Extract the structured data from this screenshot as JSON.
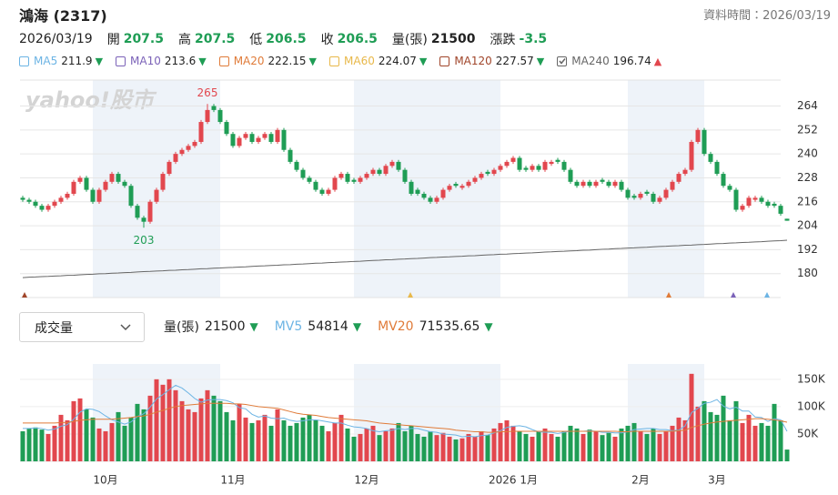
{
  "header": {
    "title": "鴻海 (2317)",
    "data_time": "資料時間：2026/03/19",
    "quote": {
      "date": "2026/03/19",
      "items": [
        {
          "label": "開",
          "value": 207.5,
          "color": "#1f9d55"
        },
        {
          "label": "高",
          "value": 207.5,
          "color": "#1f9d55"
        },
        {
          "label": "低",
          "value": 206.5,
          "color": "#1f9d55"
        },
        {
          "label": "收",
          "value": 206.5,
          "color": "#1f9d55"
        },
        {
          "label": "量(張)",
          "value": 21500,
          "color": "#222222"
        },
        {
          "label": "漲跌",
          "value": -3.5,
          "color": "#1f9d55"
        }
      ]
    }
  },
  "chart_data": [
    {
      "type": "candlestick",
      "watermark": "yahoo!股市",
      "high_label": "265",
      "low_label": "203",
      "up_color": "#e2474e",
      "down_color": "#1f9d55",
      "ylim": [
        168,
        277
      ],
      "yticks": [
        264,
        252,
        240,
        228,
        216,
        204,
        192,
        180
      ],
      "grid": true,
      "ma_legend": [
        {
          "name": "MA5",
          "value": 211.9,
          "trend": "▼",
          "color": "#6cb4e4",
          "checked": false
        },
        {
          "name": "MA10",
          "value": 213.6,
          "trend": "▼",
          "color": "#7b62b8",
          "checked": false
        },
        {
          "name": "MA20",
          "value": 222.15,
          "trend": "▼",
          "color": "#e07b39",
          "checked": false
        },
        {
          "name": "MA60",
          "value": 224.07,
          "trend": "▼",
          "color": "#e8b84a",
          "checked": false
        },
        {
          "name": "MA120",
          "value": 227.57,
          "trend": "▼",
          "color": "#a0452a",
          "checked": false
        },
        {
          "name": "MA240",
          "value": 196.74,
          "trend": "▲",
          "color": "#666666",
          "checked": true,
          "values": [
            178.0,
            178.2,
            178.3,
            178.5,
            178.6,
            178.8,
            178.9,
            179.1,
            179.2,
            179.4,
            179.6,
            179.7,
            179.9,
            180.0,
            180.2,
            180.3,
            180.5,
            180.6,
            180.8,
            181.0,
            181.1,
            181.3,
            181.4,
            181.6,
            181.7,
            181.9,
            182.0,
            182.2,
            182.4,
            182.5,
            182.7,
            182.8,
            183.0,
            183.1,
            183.3,
            183.4,
            183.6,
            183.8,
            183.9,
            184.1,
            184.2,
            184.4,
            184.5,
            184.7,
            184.8,
            185.0,
            185.2,
            185.3,
            185.5,
            185.6,
            185.8,
            185.9,
            186.1,
            186.2,
            186.4,
            186.6,
            186.7,
            186.9,
            187.0,
            187.2,
            187.3,
            187.5,
            187.6,
            187.8,
            188.0,
            188.1,
            188.3,
            188.4,
            188.6,
            188.7,
            188.9,
            189.0,
            189.2,
            189.4,
            189.5,
            189.7,
            189.8,
            190.0,
            190.1,
            190.3,
            190.4,
            190.6,
            190.8,
            190.9,
            191.1,
            191.2,
            191.4,
            191.5,
            191.7,
            191.8,
            192.0,
            192.2,
            192.3,
            192.5,
            192.6,
            192.8,
            192.9,
            193.1,
            193.2,
            193.4,
            193.6,
            193.7,
            193.9,
            194.0,
            194.2,
            194.3,
            194.5,
            194.6,
            194.8,
            195.0,
            195.1,
            195.3,
            195.4,
            195.6,
            195.7,
            195.9,
            196.0,
            196.2,
            196.4,
            196.5,
            196.74
          ]
        }
      ],
      "open": [
        218,
        217,
        216,
        214,
        212,
        214,
        216,
        218,
        220,
        226,
        228,
        222,
        216,
        222,
        226,
        230,
        226,
        224,
        214,
        208,
        206,
        216,
        222,
        230,
        236,
        240,
        242,
        244,
        246,
        256,
        264,
        262,
        256,
        250,
        244,
        248,
        250,
        246,
        248,
        250,
        246,
        252,
        242,
        236,
        232,
        228,
        226,
        222,
        220,
        222,
        228,
        230,
        227,
        226,
        228,
        230,
        232,
        230,
        234,
        236,
        232,
        226,
        222,
        220,
        218,
        216,
        218,
        222,
        225,
        223,
        224,
        226,
        228,
        231,
        230,
        232,
        234,
        236,
        238,
        233,
        232,
        234,
        232,
        235,
        237,
        236,
        232,
        226,
        224,
        226,
        224,
        227,
        226,
        224,
        226,
        222,
        219,
        218,
        221,
        220,
        216,
        218,
        222,
        226,
        230,
        232,
        246,
        252,
        240,
        236,
        230,
        224,
        222,
        212,
        214,
        217,
        218,
        216,
        215,
        214,
        207.5
      ],
      "high": [
        219,
        218,
        217,
        215,
        215,
        217,
        219,
        221,
        227,
        229,
        229,
        223,
        223,
        227,
        231,
        231,
        227,
        225,
        215,
        209,
        217,
        223,
        231,
        237,
        241,
        243,
        245,
        247,
        257,
        265,
        265,
        263,
        257,
        251,
        249,
        251,
        251,
        249,
        251,
        251,
        253,
        253,
        243,
        237,
        233,
        229,
        227,
        223,
        223,
        229,
        231,
        231,
        228,
        229,
        231,
        233,
        233,
        235,
        237,
        237,
        233,
        227,
        223,
        221,
        219,
        219,
        223,
        225,
        226,
        225,
        227,
        229,
        231,
        232,
        233,
        235,
        237,
        239,
        239,
        234,
        235,
        235,
        237,
        237,
        238,
        237,
        233,
        227,
        227,
        227,
        227,
        228,
        227,
        227,
        227,
        223,
        220,
        221,
        222,
        221,
        219,
        223,
        227,
        231,
        233,
        247,
        253,
        253,
        241,
        237,
        231,
        225,
        223,
        215,
        219,
        219,
        219,
        217,
        216,
        215,
        207.5
      ],
      "low": [
        216,
        215,
        213,
        211,
        211,
        213,
        215,
        217,
        219,
        225,
        221,
        215,
        215,
        221,
        225,
        225,
        223,
        213,
        207,
        203,
        205,
        215,
        221,
        229,
        235,
        239,
        241,
        243,
        245,
        255,
        261,
        255,
        249,
        243,
        243,
        247,
        245,
        245,
        247,
        245,
        245,
        241,
        235,
        231,
        227,
        225,
        221,
        219,
        219,
        221,
        227,
        225,
        225,
        225,
        227,
        229,
        229,
        229,
        233,
        231,
        225,
        219,
        219,
        217,
        215,
        215,
        217,
        221,
        223,
        222,
        223,
        225,
        227,
        229,
        229,
        231,
        233,
        235,
        231,
        231,
        231,
        231,
        231,
        234,
        235,
        231,
        225,
        223,
        223,
        223,
        223,
        225,
        223,
        223,
        221,
        217,
        217,
        217,
        219,
        215,
        215,
        217,
        221,
        225,
        229,
        231,
        245,
        239,
        235,
        229,
        223,
        221,
        211,
        211,
        213,
        216,
        215,
        213,
        213,
        209,
        206.5
      ],
      "close": [
        217,
        216,
        214,
        212,
        214,
        216,
        218,
        220,
        226,
        228,
        222,
        216,
        222,
        226,
        230,
        226,
        224,
        214,
        208,
        206,
        216,
        222,
        230,
        236,
        240,
        242,
        244,
        246,
        256,
        262,
        262,
        256,
        250,
        244,
        248,
        250,
        246,
        248,
        250,
        246,
        252,
        242,
        236,
        232,
        228,
        226,
        222,
        220,
        222,
        228,
        230,
        226,
        226,
        228,
        230,
        232,
        230,
        234,
        236,
        232,
        226,
        220,
        220,
        218,
        216,
        218,
        222,
        224,
        224,
        224,
        226,
        228,
        230,
        230,
        232,
        234,
        236,
        238,
        232,
        232,
        234,
        232,
        236,
        236,
        236,
        232,
        226,
        224,
        226,
        224,
        226,
        226,
        224,
        226,
        222,
        218,
        218,
        220,
        220,
        216,
        218,
        222,
        226,
        230,
        232,
        246,
        252,
        240,
        236,
        230,
        224,
        222,
        212,
        214,
        218,
        218,
        216,
        214,
        214,
        210,
        206.5
      ]
    },
    {
      "type": "bar",
      "selector": "成交量",
      "current": {
        "label": "量(張)",
        "value": 21500,
        "trend": "▼"
      },
      "ylim": [
        0,
        178000
      ],
      "yticks": [
        {
          "value": 150000,
          "label": "150K"
        },
        {
          "value": 100000,
          "label": "100K"
        },
        {
          "value": 50000,
          "label": "50K"
        }
      ],
      "grid": true,
      "categories": [
        null,
        null,
        null,
        null,
        null,
        null,
        null,
        null,
        null,
        null,
        null,
        null,
        null,
        "10月",
        null,
        null,
        null,
        null,
        null,
        null,
        null,
        null,
        null,
        null,
        null,
        null,
        null,
        null,
        null,
        null,
        null,
        null,
        null,
        "11月",
        null,
        null,
        null,
        null,
        null,
        null,
        null,
        null,
        null,
        null,
        null,
        null,
        null,
        null,
        null,
        null,
        null,
        null,
        null,
        null,
        "12月",
        null,
        null,
        null,
        null,
        null,
        null,
        null,
        null,
        null,
        null,
        null,
        null,
        null,
        null,
        null,
        null,
        null,
        null,
        null,
        null,
        null,
        null,
        "2026 1月",
        null,
        null,
        null,
        null,
        null,
        null,
        null,
        null,
        null,
        null,
        null,
        null,
        null,
        null,
        null,
        null,
        null,
        null,
        null,
        "2月",
        null,
        null,
        null,
        null,
        null,
        null,
        null,
        null,
        null,
        null,
        null,
        "3月",
        null,
        null,
        null,
        null,
        null,
        null,
        null,
        null,
        null,
        null,
        null
      ],
      "values": [
        55000,
        60000,
        62000,
        58000,
        50000,
        65000,
        85000,
        75000,
        110000,
        115000,
        95000,
        80000,
        60000,
        55000,
        70000,
        90000,
        65000,
        80000,
        105000,
        95000,
        120000,
        150000,
        140000,
        150000,
        130000,
        110000,
        95000,
        90000,
        115000,
        130000,
        120000,
        110000,
        90000,
        75000,
        105000,
        80000,
        70000,
        75000,
        85000,
        65000,
        95000,
        75000,
        65000,
        70000,
        80000,
        85000,
        75000,
        65000,
        55000,
        70000,
        85000,
        60000,
        45000,
        50000,
        60000,
        65000,
        48000,
        55000,
        60000,
        70000,
        55000,
        65000,
        50000,
        45000,
        55000,
        48000,
        52000,
        45000,
        40000,
        42000,
        50000,
        45000,
        55000,
        48000,
        60000,
        70000,
        75000,
        65000,
        55000,
        50000,
        45000,
        55000,
        60000,
        50000,
        45000,
        55000,
        65000,
        60000,
        50000,
        58000,
        55000,
        48000,
        52000,
        45000,
        60000,
        65000,
        70000,
        55000,
        50000,
        60000,
        50000,
        55000,
        65000,
        80000,
        75000,
        160000,
        100000,
        110000,
        90000,
        85000,
        120000,
        75000,
        110000,
        70000,
        85000,
        65000,
        70000,
        65000,
        105000,
        75000,
        21500
      ],
      "series": [
        {
          "name": "MV5",
          "color": "#6cb4e4",
          "value": 54814,
          "trend": "▼",
          "values": [
            60000,
            60000,
            61000,
            60000,
            57000,
            59000,
            64000,
            67000,
            77000,
            90000,
            96000,
            95000,
            91000,
            83000,
            76000,
            72000,
            68000,
            72000,
            82000,
            87000,
            99000,
            114000,
            122000,
            131000,
            139000,
            134000,
            125000,
            115000,
            108000,
            112000,
            113000,
            113000,
            111000,
            107000,
            98000,
            96000,
            86000,
            81000,
            83000,
            79000,
            78000,
            79000,
            75000,
            73000,
            74000,
            76000,
            76000,
            74000,
            72000,
            70000,
            70000,
            66000,
            63000,
            62000,
            60000,
            56000,
            54000,
            56000,
            57000,
            60000,
            58000,
            60000,
            60000,
            57000,
            54000,
            53000,
            50000,
            49000,
            48000,
            45000,
            46000,
            45000,
            47000,
            48000,
            52000,
            56000,
            62000,
            64000,
            65000,
            63000,
            58000,
            54000,
            53000,
            53000,
            51000,
            53000,
            55000,
            55000,
            55000,
            56000,
            55000,
            53000,
            53000,
            52000,
            52000,
            54000,
            58000,
            59000,
            60000,
            60000,
            58000,
            58000,
            56000,
            57000,
            65000,
            89000,
            97000,
            106000,
            108000,
            113000,
            101000,
            96000,
            99000,
            92000,
            92000,
            81000,
            80000,
            73000,
            78000,
            76000,
            54814
          ]
        },
        {
          "name": "MV20",
          "color": "#e07b39",
          "value": 71535.65,
          "trend": "▼",
          "values": [
            70000,
            70000,
            70000,
            70000,
            70000,
            70000,
            71000,
            71000,
            73000,
            75000,
            76000,
            77000,
            77000,
            77000,
            77000,
            78000,
            79000,
            80000,
            82000,
            83000,
            86000,
            90000,
            93000,
            97000,
            100000,
            102000,
            103000,
            104000,
            105000,
            106000,
            106000,
            106000,
            106000,
            105000,
            105000,
            104000,
            102000,
            100000,
            99000,
            98000,
            97000,
            94000,
            91000,
            88000,
            86000,
            85000,
            84000,
            82000,
            80000,
            79000,
            78000,
            77000,
            76000,
            75000,
            74000,
            72000,
            70000,
            69000,
            68000,
            67000,
            66000,
            65000,
            64000,
            63000,
            62000,
            61000,
            60000,
            59000,
            57000,
            56000,
            55000,
            54000,
            54000,
            53000,
            53000,
            54000,
            54000,
            55000,
            55000,
            55000,
            55000,
            55000,
            55000,
            55000,
            55000,
            55000,
            55000,
            55000,
            55000,
            55000,
            55000,
            55000,
            55000,
            55000,
            54000,
            54000,
            55000,
            55000,
            55000,
            55000,
            55000,
            55000,
            55000,
            56000,
            57000,
            62000,
            65000,
            68000,
            70000,
            72000,
            73000,
            74000,
            75000,
            76000,
            77000,
            78000,
            78000,
            77000,
            76000,
            74000,
            71535.65
          ]
        }
      ]
    }
  ]
}
